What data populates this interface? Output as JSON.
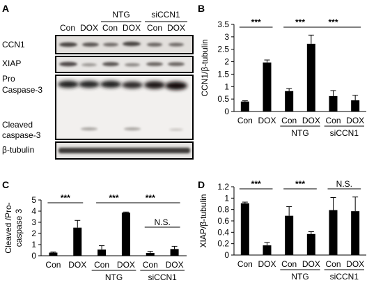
{
  "panels": {
    "A": {
      "letter": "A",
      "lanes": [
        "Con",
        "DOX",
        "Con",
        "DOX",
        "Con",
        "DOX"
      ],
      "groups": [
        "NTG",
        "siCCN1"
      ],
      "rows": [
        "CCN1",
        "XIAP",
        "Pro",
        "Caspase-3",
        "Cleaved",
        "caspase-3",
        "β-tubulin"
      ]
    },
    "B": {
      "letter": "B"
    },
    "C": {
      "letter": "C"
    },
    "D": {
      "letter": "D"
    }
  },
  "chart_data": [
    {
      "id": "B",
      "type": "bar",
      "categories": [
        "Con",
        "DOX",
        "Con",
        "DOX",
        "Con",
        "DOX"
      ],
      "groups": [
        "",
        "",
        "NTG",
        "NTG",
        "siCCN1",
        "siCCN1"
      ],
      "ylabel": "CCN1/β-tubulin",
      "ylim": [
        0,
        3.5
      ],
      "yticks": [
        "0",
        "0.5",
        "1",
        "1.5",
        "2",
        "2.5",
        "3",
        "3.5"
      ],
      "values": [
        0.4,
        1.97,
        0.82,
        2.72,
        0.62,
        0.45
      ],
      "errors": [
        0.03,
        0.1,
        0.1,
        0.35,
        0.22,
        0.2
      ],
      "significance": [
        {
          "from": 0,
          "to": 1,
          "label": "***"
        },
        {
          "from": 2,
          "to": 3,
          "label": "***"
        },
        {
          "from": 3,
          "to": 5,
          "label": "***"
        }
      ]
    },
    {
      "id": "C",
      "type": "bar",
      "categories": [
        "Con",
        "DOX",
        "Con",
        "DOX",
        "Con",
        "DOX"
      ],
      "groups": [
        "",
        "",
        "NTG",
        "NTG",
        "siCCN1",
        "siCCN1"
      ],
      "ylabel": "Cleaved /Pro-caspase 3",
      "ylim": [
        0,
        5
      ],
      "yticks": [
        "0",
        "1",
        "2",
        "3",
        "4",
        "5"
      ],
      "values": [
        0.28,
        2.52,
        0.55,
        3.87,
        0.25,
        0.6
      ],
      "errors": [
        0.05,
        0.65,
        0.35,
        0.05,
        0.15,
        0.25
      ],
      "significance": [
        {
          "from": 0,
          "to": 1,
          "label": "***"
        },
        {
          "from": 2,
          "to": 3,
          "label": "***"
        },
        {
          "from": 3,
          "to": 5,
          "label": "***"
        },
        {
          "from": 4,
          "to": 5,
          "label": "N.S."
        }
      ]
    },
    {
      "id": "D",
      "type": "bar",
      "categories": [
        "Con",
        "DOX",
        "Con",
        "DOX",
        "Con",
        "DOX"
      ],
      "groups": [
        "",
        "",
        "NTG",
        "NTG",
        "siCCN1",
        "siCCN1"
      ],
      "ylabel": "XIAP/β-tubulin",
      "ylim": [
        0,
        1.2
      ],
      "yticks": [
        "0",
        "0.2",
        "0.4",
        "0.6",
        "0.8",
        "1",
        "1.2"
      ],
      "values": [
        0.91,
        0.17,
        0.69,
        0.37,
        0.79,
        0.77
      ],
      "errors": [
        0.02,
        0.05,
        0.16,
        0.04,
        0.22,
        0.25
      ],
      "significance": [
        {
          "from": 0,
          "to": 1,
          "label": "***"
        },
        {
          "from": 2,
          "to": 3,
          "label": "***"
        },
        {
          "from": 4,
          "to": 5,
          "label": "N.S."
        }
      ]
    }
  ]
}
